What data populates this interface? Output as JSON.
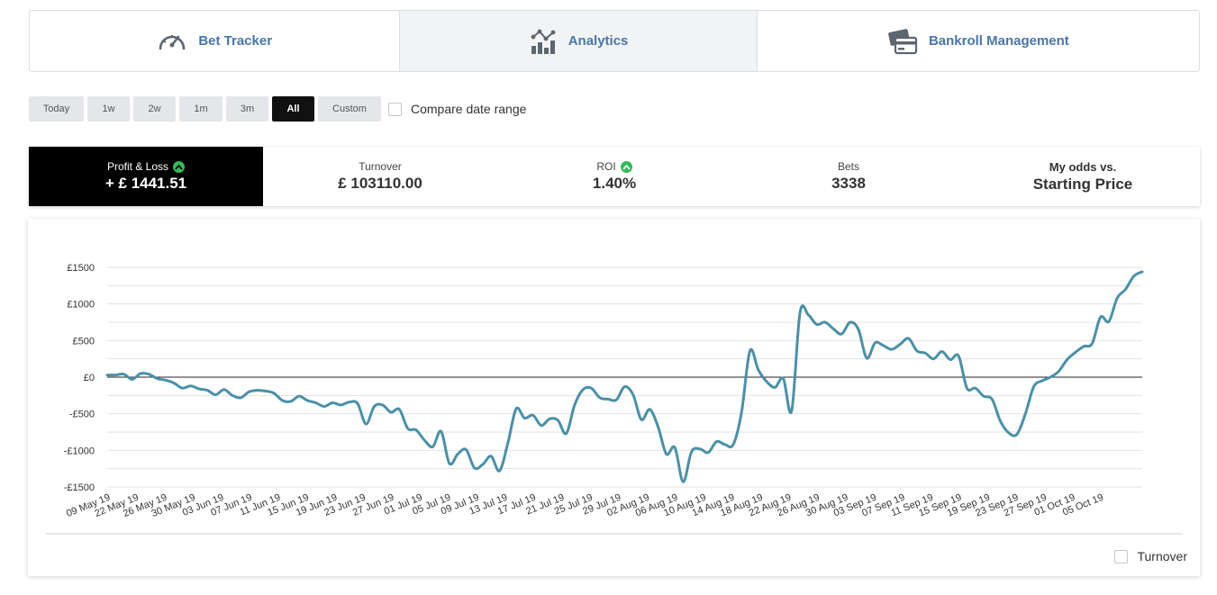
{
  "nav": {
    "tabs": [
      {
        "label": "Bet Tracker",
        "icon": "speedometer-icon"
      },
      {
        "label": "Analytics",
        "icon": "analytics-chart-icon",
        "active": true
      },
      {
        "label": "Bankroll Management",
        "icon": "credit-cards-icon"
      }
    ]
  },
  "range": {
    "buttons": [
      "Today",
      "1w",
      "2w",
      "1m",
      "3m",
      "All",
      "Custom"
    ],
    "active": "All",
    "compare_label": "Compare date range"
  },
  "stats": {
    "profit": {
      "label": "Profit & Loss",
      "value": "+ £ 1441.51"
    },
    "turnover": {
      "label": "Turnover",
      "value": "£ 103110.00"
    },
    "roi": {
      "label": "ROI",
      "value": "1.40%"
    },
    "bets": {
      "label": "Bets",
      "value": "3338"
    },
    "odds": {
      "line1": "My odds vs.",
      "line2": "Starting Price"
    }
  },
  "colors": {
    "accent": "#4a76a8",
    "line": "#4a90a8",
    "badge": "#2ebd59",
    "active_bg": "#000000"
  },
  "chart_data": {
    "type": "line",
    "title": "",
    "xlabel": "",
    "ylabel": "",
    "ylim": [
      -1500,
      1500
    ],
    "yticks": [
      1500,
      1000,
      500,
      0,
      -500,
      -1000,
      -1500
    ],
    "ytick_labels": [
      "£1500",
      "£1000",
      "£500",
      "£0",
      "-£500",
      "-£1000",
      "-£1500"
    ],
    "xtick_labels": [
      "09 May 19",
      "22 May 19",
      "26 May 19",
      "30 May 19",
      "03 Jun 19",
      "07 Jun 19",
      "11 Jun 19",
      "15 Jun 19",
      "19 Jun 19",
      "23 Jun 19",
      "27 Jun 19",
      "01 Jul 19",
      "05 Jul 19",
      "09 Jul 19",
      "13 Jul 19",
      "17 Jul 19",
      "21 Jul 19",
      "25 Jul 19",
      "29 Jul 19",
      "02 Aug 19",
      "06 Aug 19",
      "10 Aug 19",
      "14 Aug 19",
      "18 Aug 19",
      "22 Aug 19",
      "26 Aug 19",
      "30 Aug 19",
      "03 Sep 19",
      "07 Sep 19",
      "11 Sep 19",
      "15 Sep 19",
      "19 Sep 19",
      "23 Sep 19",
      "27 Sep 19",
      "01 Oct 19",
      "05 Oct 19"
    ],
    "grid": true,
    "series": [
      {
        "values": [
          30,
          30,
          40,
          -30,
          50,
          40,
          -20,
          -40,
          -80,
          -150,
          -120,
          -160,
          -180,
          -240,
          -170,
          -250,
          -280,
          -200,
          -180,
          -190,
          -220,
          -320,
          -330,
          -260,
          -320,
          -350,
          -400,
          -350,
          -380,
          -340,
          -360,
          -640,
          -400,
          -380,
          -480,
          -440,
          -700,
          -720,
          -860,
          -950,
          -740,
          -1180,
          -1050,
          -990,
          -1240,
          -1190,
          -1080,
          -1280,
          -900,
          -430,
          -560,
          -520,
          -660,
          -570,
          -590,
          -770,
          -380,
          -170,
          -150,
          -280,
          -300,
          -310,
          -130,
          -240,
          -580,
          -440,
          -680,
          -1050,
          -960,
          -1430,
          -1020,
          -980,
          -1030,
          -880,
          -920,
          -920,
          -480,
          360,
          100,
          -60,
          -140,
          -20,
          -460,
          880,
          850,
          720,
          750,
          660,
          590,
          750,
          650,
          260,
          470,
          430,
          380,
          450,
          530,
          360,
          330,
          250,
          350,
          240,
          290,
          -150,
          -150,
          -260,
          -300,
          -600,
          -760,
          -780,
          -500,
          -130,
          -50,
          0,
          80,
          240,
          340,
          420,
          460,
          820,
          760,
          1080,
          1200,
          1380,
          1440
        ]
      }
    ],
    "x_label_positions": [
      0,
      3.4,
      6.8,
      10.2,
      13.6,
      17,
      20.4,
      23.8,
      27.2,
      30.6,
      34,
      37.4,
      40.8,
      44.2,
      47.6,
      51,
      54.4,
      57.8,
      61.2,
      64.6,
      68,
      71.4,
      74.8,
      78.2,
      81.6,
      85,
      88.4,
      91.8,
      95.2,
      98.6,
      102,
      105.4,
      108.8,
      112.2,
      115.6,
      119
    ]
  },
  "chart_toggle": {
    "label": "Turnover"
  }
}
